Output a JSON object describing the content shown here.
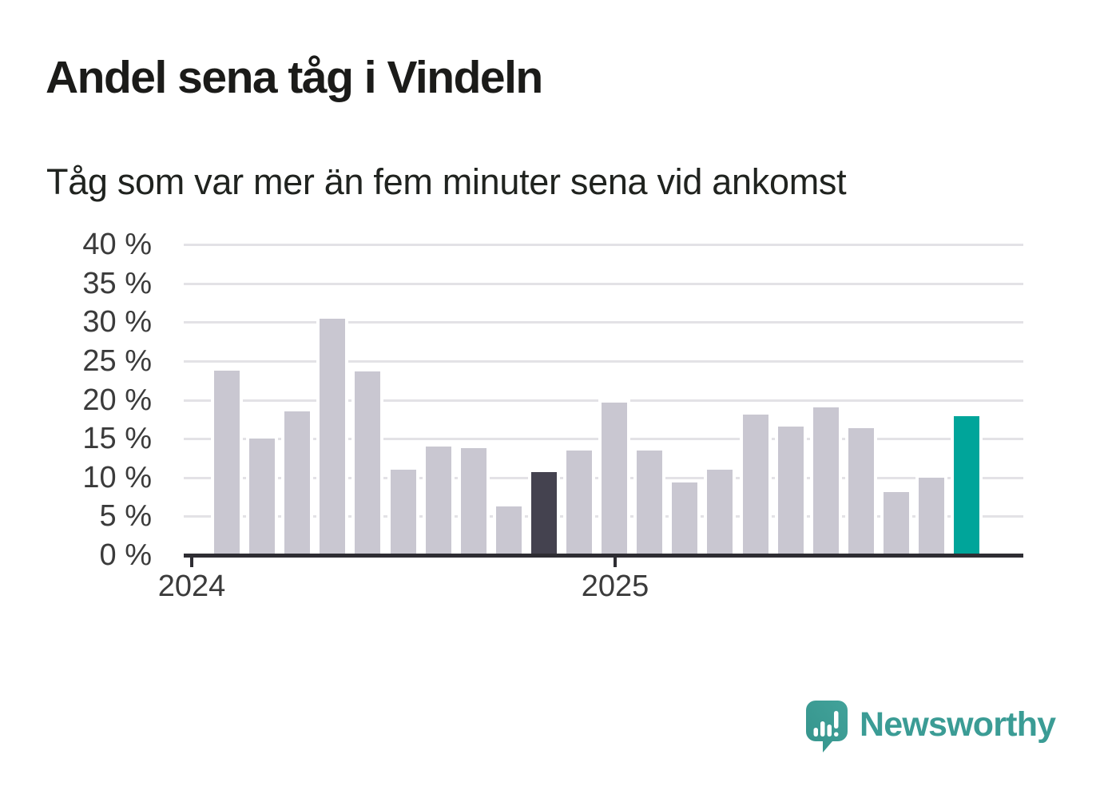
{
  "header": {
    "title": "Andel sena tåg i Vindeln",
    "subtitle": "Tåg som var mer än fem minuter sena vid ankomst"
  },
  "chart_data": {
    "type": "bar",
    "title": "Andel sena tåg i Vindeln",
    "subtitle": "Tåg som var mer än fem minuter sena vid ankomst",
    "unit": "%",
    "categories": [
      "2024-02",
      "2024-03",
      "2024-04",
      "2024-05",
      "2024-06",
      "2024-07",
      "2024-08",
      "2024-09",
      "2024-10",
      "2024-11",
      "2024-12",
      "2025-01",
      "2025-02",
      "2025-03",
      "2025-04",
      "2025-05",
      "2025-06",
      "2025-07",
      "2025-08",
      "2025-09",
      "2025-10",
      "2025-11"
    ],
    "values": [
      23.8,
      15.0,
      18.5,
      30.5,
      23.7,
      11.0,
      14.0,
      13.8,
      6.3,
      10.7,
      13.5,
      19.7,
      13.5,
      9.4,
      11.0,
      18.1,
      16.6,
      19.0,
      16.4,
      8.1,
      10.0,
      17.9
    ],
    "highlights": {
      "dark_bar_category": "2024-11",
      "dark_bar_index": 9,
      "accent_bar_category": "2025-11",
      "accent_bar_index": 21
    },
    "ylim": [
      0,
      40
    ],
    "y_tick_step": 5,
    "y_tick_labels": [
      "0 %",
      "5 %",
      "10 %",
      "15 %",
      "20 %",
      "25 %",
      "30 %",
      "35 %",
      "40 %"
    ],
    "x_tick_labels": [
      "2024",
      "2025"
    ],
    "grid": true,
    "legend": "none",
    "colors": {
      "bar_default": "#c9c7d1",
      "bar_dark": "#44424f",
      "bar_accent": "#00a59a",
      "gridline": "#e3e2e6",
      "axis": "#2e2d33",
      "axis_text": "#3b3b3b"
    }
  },
  "branding": {
    "logo_text": "Newsworthy",
    "logo_color": "#3b9c95",
    "logo_icon": "newsworthy-chart-bubble-icon"
  }
}
